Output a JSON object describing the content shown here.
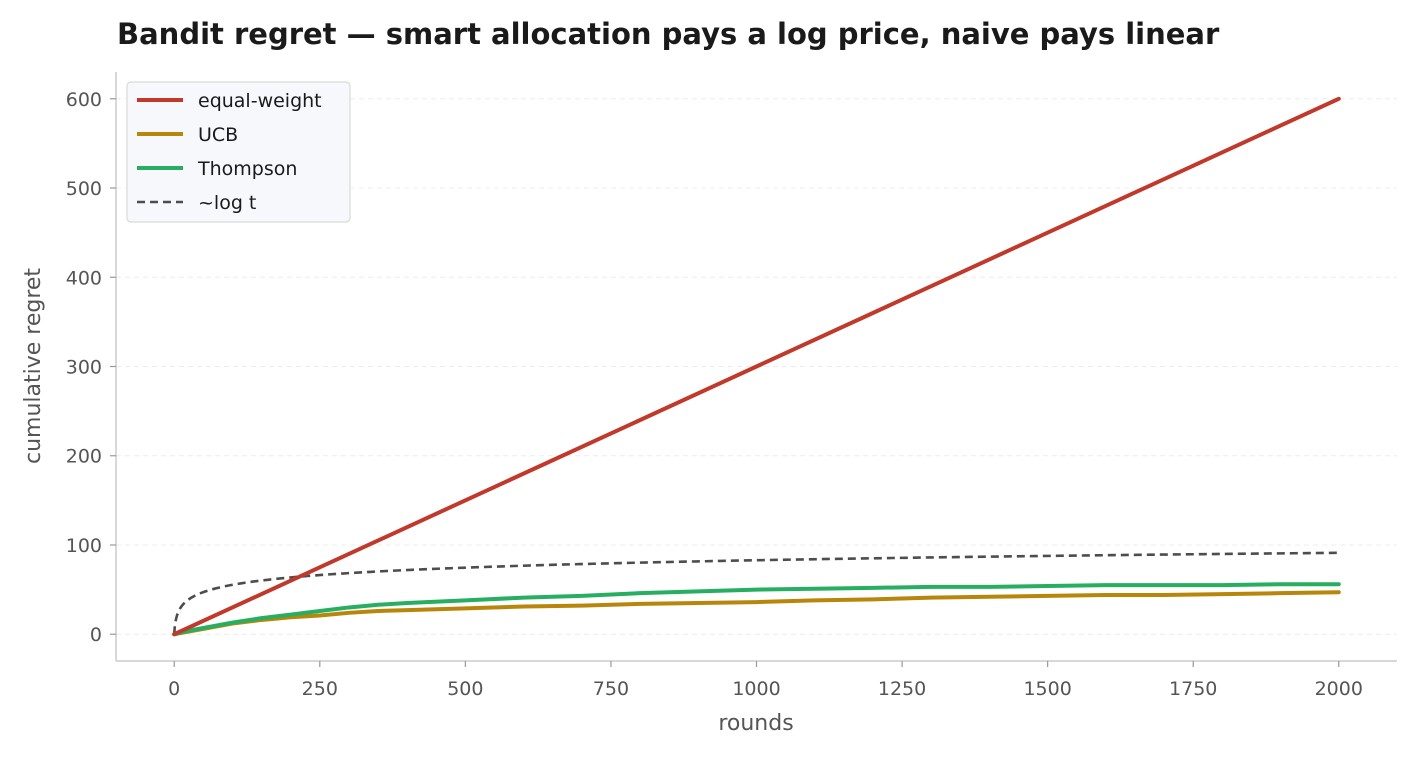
{
  "chart_data": {
    "type": "line",
    "title": "Bandit regret — smart allocation pays a log price, naive pays linear",
    "xlabel": "rounds",
    "ylabel": "cumulative regret",
    "xlim": [
      -100,
      2100
    ],
    "ylim": [
      -30,
      630
    ],
    "xticks": [
      0,
      250,
      500,
      750,
      1000,
      1250,
      1500,
      1750,
      2000
    ],
    "yticks": [
      0,
      100,
      200,
      300,
      400,
      500,
      600
    ],
    "grid": "y-dashed",
    "legend_position": "top-left",
    "series": [
      {
        "name": "equal-weight",
        "color": "#c0392b",
        "style": "solid",
        "x": [
          0,
          2000
        ],
        "y": [
          0,
          600
        ]
      },
      {
        "name": "UCB",
        "color": "#b8860b",
        "style": "solid",
        "x": [
          0,
          25,
          50,
          100,
          150,
          200,
          250,
          300,
          350,
          400,
          500,
          600,
          700,
          800,
          900,
          1000,
          1100,
          1200,
          1300,
          1400,
          1500,
          1600,
          1700,
          1800,
          1900,
          2000
        ],
        "y": [
          0,
          3,
          6,
          12,
          16,
          19,
          21,
          24,
          26,
          27,
          29,
          31,
          32,
          34,
          35,
          36,
          38,
          39,
          41,
          42,
          43,
          44,
          44,
          45,
          46,
          47
        ]
      },
      {
        "name": "Thompson",
        "color": "#27ae60",
        "style": "solid",
        "x": [
          0,
          25,
          50,
          100,
          150,
          200,
          250,
          300,
          350,
          400,
          500,
          600,
          700,
          800,
          900,
          1000,
          1100,
          1200,
          1300,
          1400,
          1500,
          1600,
          1700,
          1800,
          1900,
          2000
        ],
        "y": [
          0,
          4,
          7,
          13,
          18,
          22,
          26,
          30,
          33,
          35,
          38,
          41,
          43,
          46,
          48,
          50,
          51,
          52,
          53,
          53,
          54,
          55,
          55,
          55,
          56,
          56
        ]
      },
      {
        "name": "~log t",
        "color": "#4d4d4d",
        "style": "dashed",
        "formula": "12*ln(1+t)",
        "points": 200
      }
    ]
  }
}
